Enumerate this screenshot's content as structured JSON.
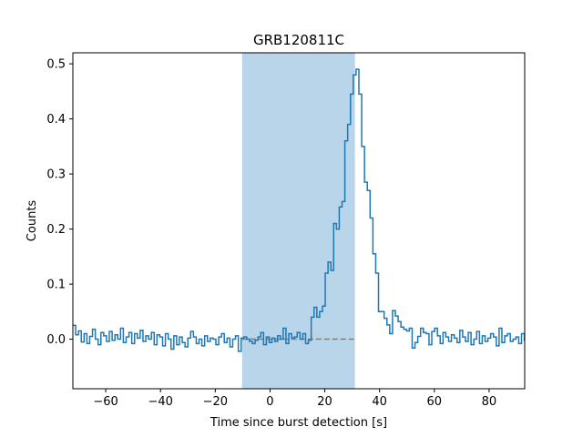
{
  "chart_data": {
    "type": "line",
    "drawstyle": "steps",
    "title": "GRB120811C",
    "xlabel": "Time since burst detection [s]",
    "ylabel": "Counts",
    "xlim": [
      -72,
      93
    ],
    "ylim": [
      -0.09,
      0.52
    ],
    "xticks": [
      -60,
      -40,
      -20,
      0,
      20,
      40,
      60,
      80
    ],
    "yticks": [
      0.0,
      0.1,
      0.2,
      0.3,
      0.4,
      0.5
    ],
    "grid": false,
    "colors": {
      "series": "#1f77b4",
      "band": "#b9d5ea",
      "baseline": "#808080"
    },
    "highlight_band": {
      "x0": -10.2,
      "x1": 31
    },
    "baseline_dashed": {
      "y": 0.0,
      "x0": -10.2,
      "x1": 31
    },
    "series": [
      {
        "bin_width": 1.024,
        "x_start": -72,
        "values": [
          0.025,
          0.008,
          0.015,
          -0.005,
          0.01,
          -0.008,
          0.005,
          0.018,
          0.0,
          -0.01,
          0.012,
          0.006,
          -0.004,
          0.014,
          -0.002,
          0.008,
          0.0,
          0.02,
          -0.006,
          0.004,
          0.012,
          -0.008,
          0.01,
          0.002,
          0.016,
          -0.004,
          0.006,
          0.0,
          0.012,
          -0.01,
          0.008,
          0.004,
          -0.012,
          0.01,
          0.0,
          -0.018,
          0.006,
          -0.01,
          0.004,
          -0.006,
          -0.014,
          0.002,
          0.014,
          0.004,
          -0.008,
          0.0,
          -0.012,
          0.006,
          -0.004,
          0.002,
          0.0,
          -0.01,
          0.004,
          0.01,
          -0.006,
          0.002,
          -0.014,
          0.0,
          0.006,
          -0.022,
          0.002,
          0.004,
          0.0,
          -0.004,
          -0.008,
          -0.002,
          0.004,
          0.012,
          -0.01,
          0.004,
          -0.006,
          0.002,
          -0.004,
          0.006,
          0.0,
          0.02,
          -0.008,
          0.01,
          0.002,
          0.004,
          0.012,
          0.0,
          0.01,
          -0.008,
          -0.002,
          0.04,
          0.058,
          0.04,
          0.05,
          0.06,
          0.12,
          0.14,
          0.125,
          0.21,
          0.2,
          0.24,
          0.25,
          0.36,
          0.39,
          0.445,
          0.48,
          0.49,
          0.445,
          0.35,
          0.285,
          0.27,
          0.22,
          0.155,
          0.12,
          0.05,
          0.05,
          0.038,
          0.026,
          0.01,
          0.052,
          0.042,
          0.032,
          0.022,
          0.018,
          0.015,
          0.02,
          -0.016,
          -0.006,
          0.005,
          0.02,
          0.012,
          0.01,
          -0.01,
          0.014,
          0.02,
          0.006,
          -0.008,
          0.012,
          0.004,
          -0.004,
          0.008,
          0.002,
          -0.006,
          0.016,
          0.004,
          -0.004,
          0.012,
          -0.01,
          0.0,
          0.014,
          -0.008,
          0.006,
          -0.004,
          0.002,
          0.01,
          0.004,
          -0.012,
          0.02,
          -0.006,
          0.006,
          0.01,
          -0.004,
          0.0,
          0.004,
          -0.008,
          0.01,
          -0.002,
          0.006,
          0.002,
          0.008,
          -0.004
        ]
      }
    ]
  }
}
